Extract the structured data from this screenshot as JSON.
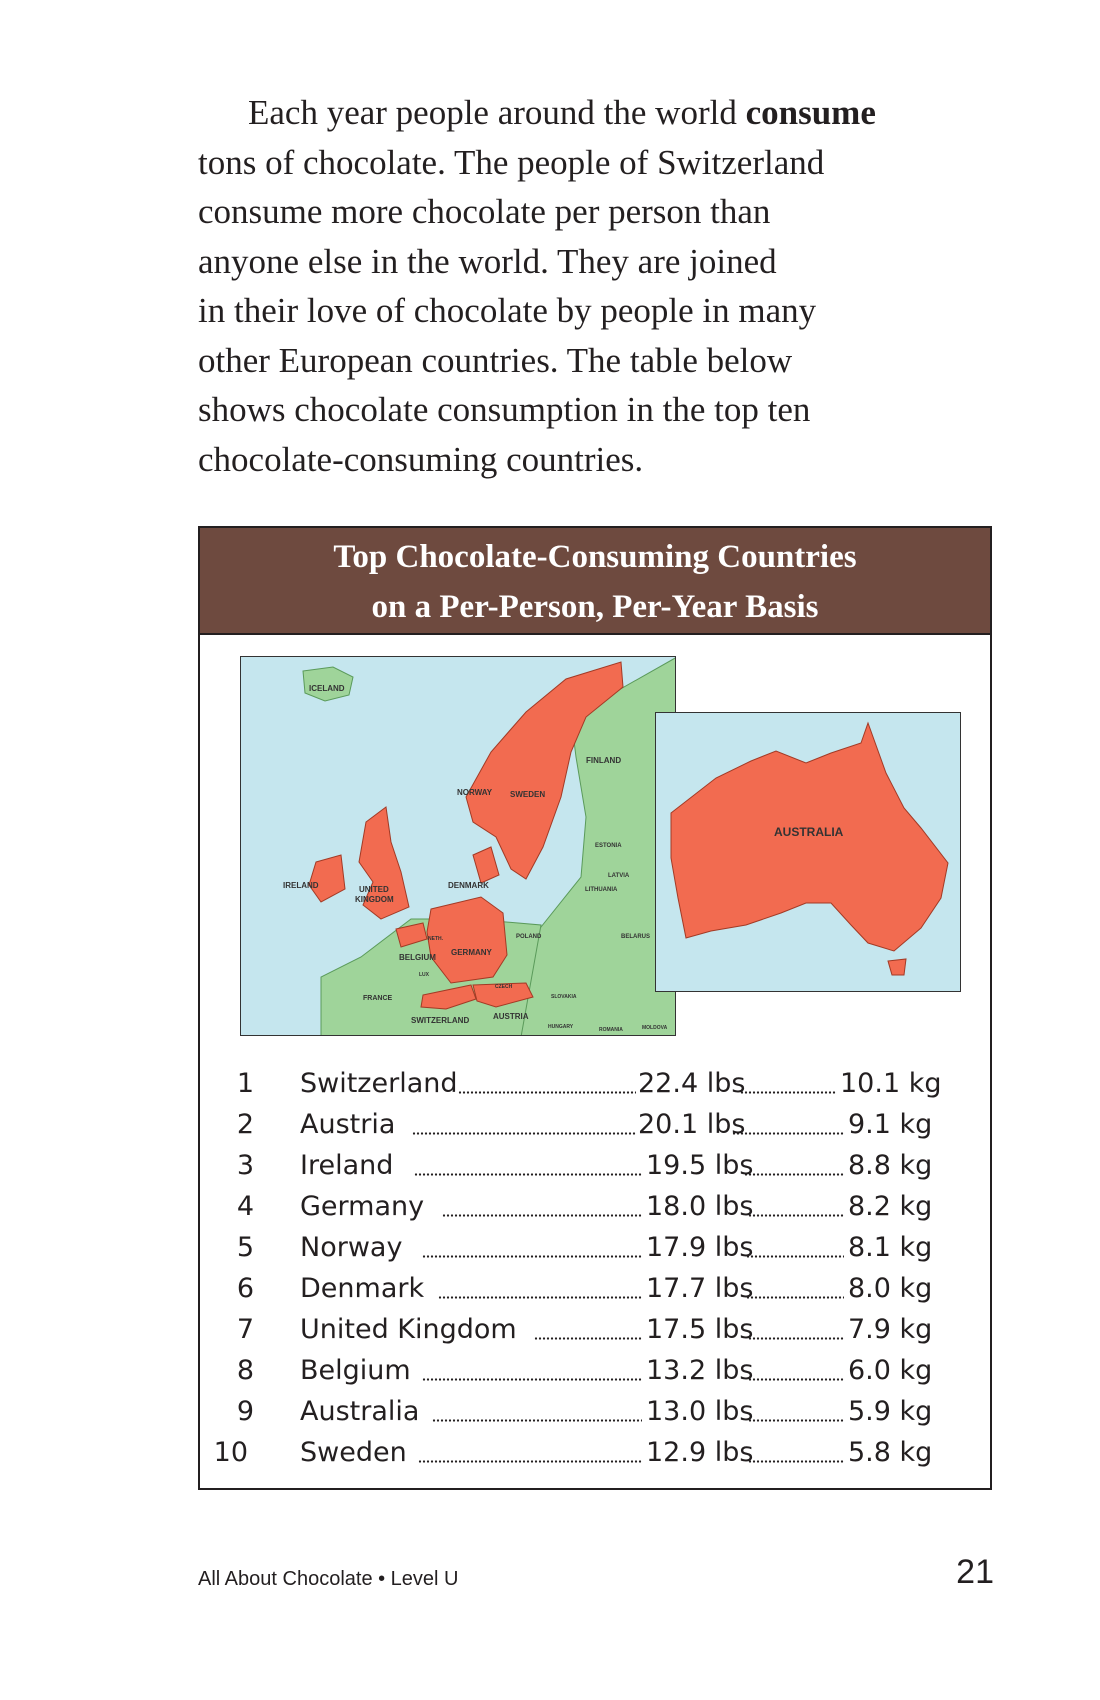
{
  "paragraph": {
    "line1_before": "Each year people around the world ",
    "line1_bold": "consume",
    "line2": "tons of chocolate. The people of Switzerland",
    "line3": "consume more chocolate per person than",
    "line4": "anyone else in the world. They are joined",
    "line5": "in their love of chocolate by people in many",
    "line6": "other European countries. The table below",
    "line7": "shows chocolate consumption in the top ten",
    "line8": "chocolate-consuming countries."
  },
  "box": {
    "title_line1": "Top Chocolate-Consuming Countries",
    "title_line2": "on a Per-Person, Per-Year Basis"
  },
  "map_labels": {
    "iceland": "ICELAND",
    "finland": "FINLAND",
    "norway": "NORWAY",
    "sweden": "SWEDEN",
    "estonia": "ESTONIA",
    "latvia": "LATVIA",
    "lithuania": "LITHUANIA",
    "ireland": "IRELAND",
    "united_kingdom_1": "UNITED",
    "united_kingdom_2": "KINGDOM",
    "denmark": "DENMARK",
    "neth": "NETH.",
    "belgium": "BELGIUM",
    "germany": "GERMANY",
    "poland": "POLAND",
    "belarus": "BELARUS",
    "lux": "LUX",
    "czech": "CZECH",
    "slovakia": "SLOVAKIA",
    "france": "FRANCE",
    "switzerland": "SWITZERLAND",
    "austria": "AUSTRIA",
    "hungary": "HUNGARY",
    "romania": "ROMANIA",
    "moldova": "MOLDOVA",
    "australia": "AUSTRALIA"
  },
  "colors": {
    "header_bg": "#6e4a3f",
    "highlight": "#f26b50",
    "land": "#9fd49a",
    "water": "#c5e6ee"
  },
  "table": {
    "rows": [
      {
        "rank": "1",
        "country": "Switzerland",
        "lbs": "22.4 lbs",
        "kg": "10.1 kg"
      },
      {
        "rank": "2",
        "country": "Austria",
        "lbs": "20.1 lbs",
        "kg": "9.1 kg"
      },
      {
        "rank": "3",
        "country": "Ireland",
        "lbs": "19.5 lbs",
        "kg": "8.8 kg"
      },
      {
        "rank": "4",
        "country": "Germany",
        "lbs": "18.0 lbs",
        "kg": "8.2 kg"
      },
      {
        "rank": "5",
        "country": "Norway",
        "lbs": "17.9 lbs",
        "kg": "8.1 kg"
      },
      {
        "rank": "6",
        "country": "Denmark",
        "lbs": "17.7 lbs",
        "kg": "8.0 kg"
      },
      {
        "rank": "7",
        "country": "United Kingdom",
        "lbs": "17.5 lbs",
        "kg": "7.9 kg"
      },
      {
        "rank": "8",
        "country": "Belgium",
        "lbs": "13.2 lbs",
        "kg": "6.0 kg"
      },
      {
        "rank": "9",
        "country": "Australia",
        "lbs": "13.0 lbs",
        "kg": "5.9 kg"
      },
      {
        "rank": "10",
        "country": "Sweden",
        "lbs": "12.9 lbs",
        "kg": "5.8 kg"
      }
    ]
  },
  "footer": {
    "book": "All About Chocolate • Level U",
    "page_number": "21"
  }
}
